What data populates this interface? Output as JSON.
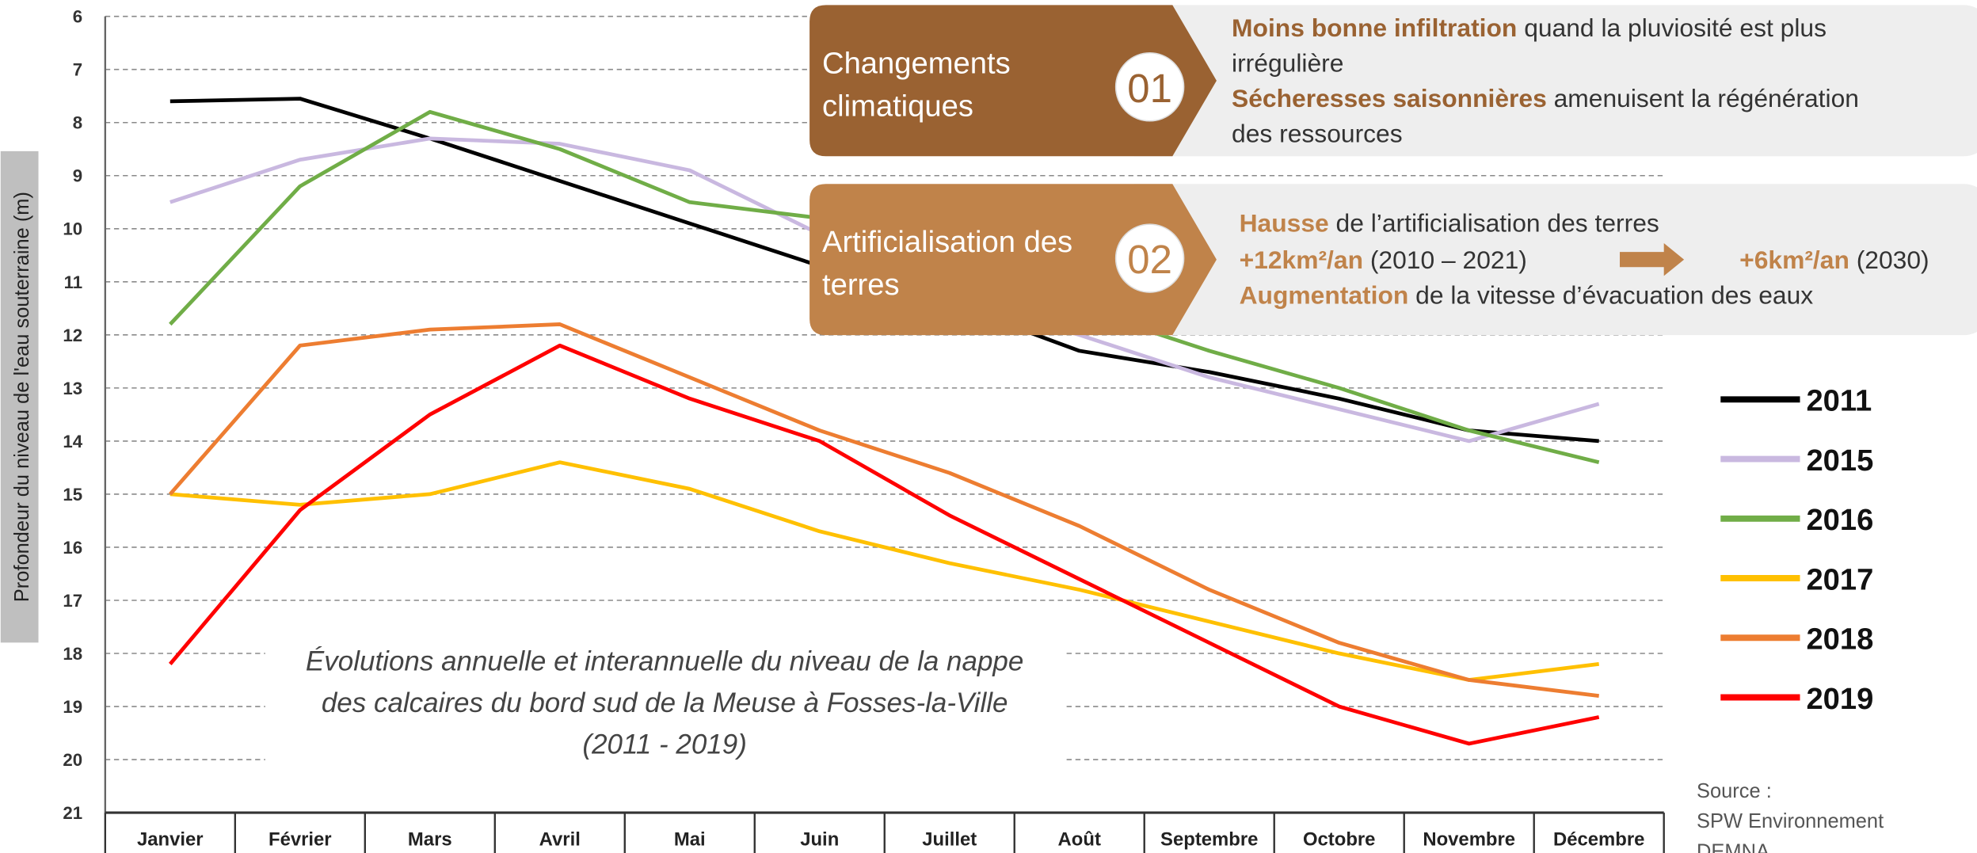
{
  "chart_data": {
    "type": "line",
    "ylabel": "Profondeur du niveau de l'eau souterraine (m)",
    "annotation": [
      "Évolutions annuelle et interannuelle du niveau de la nappe",
      "des calcaires du bord sud de la Meuse à Fosses-la-Ville",
      "(2011 - 2019)"
    ],
    "categories": [
      "Janvier",
      "Février",
      "Mars",
      "Avril",
      "Mai",
      "Juin",
      "Juillet",
      "Août",
      "Septembre",
      "Octobre",
      "Novembre",
      "Décembre"
    ],
    "series": [
      {
        "name": "2011",
        "color": "#000000",
        "values": [
          7.6,
          7.55,
          8.3,
          9.1,
          9.9,
          10.7,
          11.4,
          12.3,
          12.7,
          13.2,
          13.8,
          14.0
        ]
      },
      {
        "name": "2015",
        "color": "#c9b8e0",
        "values": [
          9.5,
          8.7,
          8.3,
          8.4,
          8.9,
          10.1,
          11.3,
          12.0,
          12.8,
          13.4,
          14.0,
          13.3
        ]
      },
      {
        "name": "2016",
        "color": "#70ad47",
        "values": [
          11.8,
          9.2,
          7.8,
          8.5,
          9.5,
          9.8,
          10.5,
          11.5,
          12.3,
          13.0,
          13.8,
          14.4
        ]
      },
      {
        "name": "2017",
        "color": "#ffc000",
        "values": [
          15.0,
          15.2,
          15.0,
          14.4,
          14.9,
          15.7,
          16.3,
          16.8,
          17.4,
          18.0,
          18.5,
          18.2
        ]
      },
      {
        "name": "2018",
        "color": "#ed7d31",
        "values": [
          15.0,
          12.2,
          11.9,
          11.8,
          12.8,
          13.8,
          14.6,
          15.6,
          16.8,
          17.8,
          18.5,
          18.8
        ]
      },
      {
        "name": "2019",
        "color": "#ff0000",
        "values": [
          18.2,
          15.3,
          13.5,
          12.2,
          13.2,
          14.0,
          15.4,
          16.6,
          17.8,
          19.0,
          19.7,
          19.2
        ]
      }
    ],
    "ylim": [
      6,
      21
    ],
    "yticks": [
      6,
      7,
      8,
      9,
      10,
      11,
      12,
      13,
      14,
      15,
      16,
      17,
      18,
      19,
      20,
      21
    ],
    "inverted": true,
    "grid": true,
    "legend": "right"
  },
  "source": [
    "Source :",
    "SPW Environnement",
    "DEMNA"
  ],
  "cards": [
    {
      "title": [
        "Changements",
        "climatiques"
      ],
      "number": "01",
      "lines": [
        [
          "Moins bonne infiltration",
          " quand la pluviosité est plus"
        ],
        [
          "irrégulière"
        ],
        [
          "Sécheresses saisonnières",
          " amenuisent la régénération"
        ],
        [
          "des ressources"
        ]
      ]
    },
    {
      "title": [
        "Artificialisation des",
        "terres"
      ],
      "number": "02",
      "lines": [
        [
          "Hausse",
          " de l’artificialisation des terres"
        ],
        [
          "+12km²/an",
          " (2010 – 2021)"
        ],
        [
          "+6km²/an",
          " (2030)"
        ],
        [
          "Augmentation",
          " de la vitesse d’évacuation des eaux"
        ]
      ]
    }
  ]
}
